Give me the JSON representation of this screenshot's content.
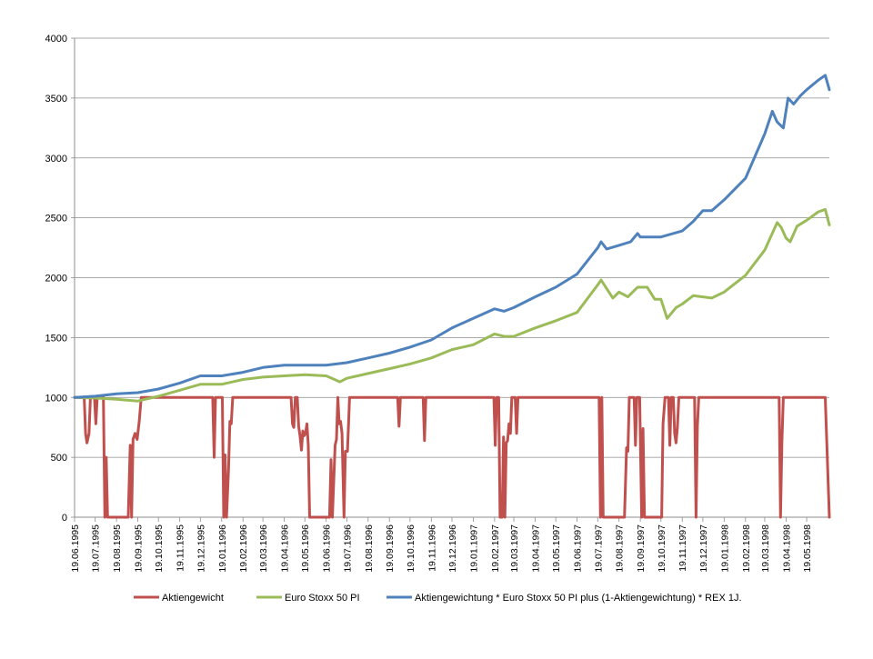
{
  "chart_data": {
    "type": "line",
    "title": "",
    "xlabel": "",
    "ylabel": "",
    "ylim": [
      0,
      4000
    ],
    "yticks": [
      0,
      500,
      1000,
      1500,
      2000,
      2500,
      3000,
      3500,
      4000
    ],
    "xlim": [
      "19.06.1995",
      "21.06.1998"
    ],
    "xticks": [
      "19.06.1995",
      "19.07.1995",
      "19.08.1995",
      "19.09.1995",
      "19.10.1995",
      "19.11.1995",
      "19.12.1995",
      "19.01.1996",
      "19.02.1996",
      "19.03.1996",
      "19.04.1996",
      "19.05.1996",
      "19.06.1996",
      "19.07.1996",
      "19.08.1996",
      "19.09.1996",
      "19.10.1996",
      "19.11.1996",
      "19.12.1996",
      "19.01.1997",
      "19.02.1997",
      "19.03.1997",
      "19.04.1997",
      "19.05.1997",
      "19.06.1997",
      "19.07.1997",
      "19.08.1997",
      "19.09.1997",
      "19.10.1997",
      "19.11.1997",
      "19.12.1997",
      "19.01.1998",
      "19.02.1998",
      "19.03.1998",
      "19.04.1998",
      "19.05.1998"
    ],
    "grid": "horizontal",
    "legend_position": "bottom",
    "series": [
      {
        "name": "Aktiengewicht",
        "color": "#c0504d",
        "points": [
          [
            "19.06.1995",
            1000
          ],
          [
            "03.07.1995",
            1000
          ],
          [
            "05.07.1995",
            700
          ],
          [
            "07.07.1995",
            620
          ],
          [
            "10.07.1995",
            700
          ],
          [
            "12.07.1995",
            1000
          ],
          [
            "18.07.1995",
            1000
          ],
          [
            "20.07.1995",
            780
          ],
          [
            "22.07.1995",
            1000
          ],
          [
            "31.07.1995",
            1000
          ],
          [
            "02.08.1995",
            0
          ],
          [
            "04.08.1995",
            500
          ],
          [
            "06.08.1995",
            0
          ],
          [
            "05.09.1995",
            0
          ],
          [
            "08.09.1995",
            600
          ],
          [
            "10.09.1995",
            0
          ],
          [
            "12.09.1995",
            650
          ],
          [
            "15.09.1995",
            700
          ],
          [
            "18.09.1995",
            650
          ],
          [
            "21.09.1995",
            800
          ],
          [
            "24.09.1995",
            1000
          ],
          [
            "06.01.1996",
            1000
          ],
          [
            "08.01.1996",
            500
          ],
          [
            "10.01.1996",
            1000
          ],
          [
            "20.01.1996",
            1000
          ],
          [
            "22.01.1996",
            0
          ],
          [
            "24.01.1996",
            520
          ],
          [
            "26.01.1996",
            0
          ],
          [
            "29.01.1996",
            400
          ],
          [
            "31.01.1996",
            800
          ],
          [
            "02.02.1996",
            780
          ],
          [
            "04.02.1996",
            1000
          ],
          [
            "29.04.1996",
            1000
          ],
          [
            "01.05.1996",
            780
          ],
          [
            "03.05.1996",
            750
          ],
          [
            "05.05.1996",
            1000
          ],
          [
            "08.05.1996",
            1000
          ],
          [
            "10.05.1996",
            760
          ],
          [
            "12.05.1996",
            680
          ],
          [
            "14.05.1996",
            560
          ],
          [
            "16.05.1996",
            720
          ],
          [
            "18.05.1996",
            680
          ],
          [
            "20.05.1996",
            700
          ],
          [
            "22.05.1996",
            780
          ],
          [
            "24.05.1996",
            600
          ],
          [
            "26.05.1996",
            0
          ],
          [
            "24.06.1996",
            0
          ],
          [
            "26.06.1996",
            480
          ],
          [
            "28.06.1996",
            0
          ],
          [
            "02.07.1996",
            600
          ],
          [
            "04.07.1996",
            650
          ],
          [
            "06.07.1996",
            1000
          ],
          [
            "08.07.1996",
            780
          ],
          [
            "10.07.1996",
            800
          ],
          [
            "12.07.1996",
            700
          ],
          [
            "15.07.1996",
            0
          ],
          [
            "17.07.1996",
            550
          ],
          [
            "20.07.1996",
            550
          ],
          [
            "23.07.1996",
            1000
          ],
          [
            "01.10.1996",
            1000
          ],
          [
            "03.10.1996",
            760
          ],
          [
            "05.10.1996",
            1000
          ],
          [
            "07.11.1996",
            1000
          ],
          [
            "09.11.1996",
            640
          ],
          [
            "11.11.1996",
            1000
          ],
          [
            "18.02.1997",
            1000
          ],
          [
            "20.02.1997",
            600
          ],
          [
            "22.02.1997",
            1000
          ],
          [
            "25.02.1997",
            1000
          ],
          [
            "27.02.1997",
            0
          ],
          [
            "02.03.1997",
            0
          ],
          [
            "04.03.1997",
            670
          ],
          [
            "06.03.1997",
            0
          ],
          [
            "08.03.1997",
            620
          ],
          [
            "10.03.1997",
            640
          ],
          [
            "12.03.1997",
            780
          ],
          [
            "14.03.1997",
            700
          ],
          [
            "16.03.1997",
            1000
          ],
          [
            "21.03.1997",
            1000
          ],
          [
            "23.03.1997",
            700
          ],
          [
            "25.03.1997",
            1000
          ],
          [
            "21.07.1997",
            1000
          ],
          [
            "23.07.1997",
            0
          ],
          [
            "25.07.1997",
            1000
          ],
          [
            "27.07.1997",
            0
          ],
          [
            "27.08.1997",
            0
          ],
          [
            "30.08.1997",
            580
          ],
          [
            "01.09.1997",
            550
          ],
          [
            "03.09.1997",
            1000
          ],
          [
            "10.09.1997",
            1000
          ],
          [
            "12.09.1997",
            600
          ],
          [
            "14.09.1997",
            1000
          ],
          [
            "18.09.1997",
            1000
          ],
          [
            "21.09.1997",
            0
          ],
          [
            "23.09.1997",
            740
          ],
          [
            "25.09.1997",
            0
          ],
          [
            "20.10.1997",
            0
          ],
          [
            "22.10.1997",
            780
          ],
          [
            "25.10.1997",
            1000
          ],
          [
            "30.10.1997",
            1000
          ],
          [
            "01.11.1997",
            600
          ],
          [
            "03.11.1997",
            1000
          ],
          [
            "06.11.1997",
            1000
          ],
          [
            "08.11.1997",
            700
          ],
          [
            "10.11.1997",
            620
          ],
          [
            "12.11.1997",
            750
          ],
          [
            "14.11.1997",
            1000
          ],
          [
            "07.12.1997",
            1000
          ],
          [
            "09.12.1997",
            0
          ],
          [
            "11.12.1997",
            760
          ],
          [
            "13.12.1997",
            1000
          ],
          [
            "09.04.1998",
            1000
          ],
          [
            "11.04.1998",
            0
          ],
          [
            "13.04.1998",
            620
          ],
          [
            "15.04.1998",
            1000
          ],
          [
            "15.06.1998",
            1000
          ],
          [
            "21.06.1998",
            0
          ]
        ]
      },
      {
        "name": "Euro Stoxx 50 PI",
        "color": "#9bbb59",
        "points": [
          [
            "19.06.1995",
            1000
          ],
          [
            "19.07.1995",
            995
          ],
          [
            "19.08.1995",
            985
          ],
          [
            "19.09.1995",
            970
          ],
          [
            "19.10.1995",
            1010
          ],
          [
            "19.11.1995",
            1060
          ],
          [
            "19.12.1995",
            1110
          ],
          [
            "19.01.1996",
            1110
          ],
          [
            "19.02.1996",
            1150
          ],
          [
            "19.03.1996",
            1170
          ],
          [
            "19.04.1996",
            1180
          ],
          [
            "19.05.1996",
            1190
          ],
          [
            "19.06.1996",
            1180
          ],
          [
            "09.07.1996",
            1130
          ],
          [
            "19.07.1996",
            1160
          ],
          [
            "19.08.1996",
            1200
          ],
          [
            "19.09.1996",
            1240
          ],
          [
            "19.10.1996",
            1280
          ],
          [
            "19.11.1996",
            1330
          ],
          [
            "19.12.1996",
            1400
          ],
          [
            "19.01.1997",
            1440
          ],
          [
            "19.02.1997",
            1530
          ],
          [
            "05.03.1997",
            1510
          ],
          [
            "19.03.1997",
            1510
          ],
          [
            "19.04.1997",
            1580
          ],
          [
            "19.05.1997",
            1640
          ],
          [
            "19.06.1997",
            1710
          ],
          [
            "19.07.1997",
            1940
          ],
          [
            "24.07.1997",
            1980
          ],
          [
            "10.08.1997",
            1830
          ],
          [
            "19.08.1997",
            1880
          ],
          [
            "01.09.1997",
            1840
          ],
          [
            "15.09.1997",
            1920
          ],
          [
            "29.09.1997",
            1920
          ],
          [
            "10.10.1997",
            1820
          ],
          [
            "19.10.1997",
            1820
          ],
          [
            "28.10.1997",
            1660
          ],
          [
            "10.11.1997",
            1750
          ],
          [
            "19.11.1997",
            1780
          ],
          [
            "05.12.1997",
            1850
          ],
          [
            "19.12.1997",
            1840
          ],
          [
            "01.01.1998",
            1830
          ],
          [
            "19.01.1998",
            1880
          ],
          [
            "19.02.1998",
            2020
          ],
          [
            "19.03.1998",
            2230
          ],
          [
            "06.04.1998",
            2460
          ],
          [
            "12.04.1998",
            2420
          ],
          [
            "19.04.1998",
            2330
          ],
          [
            "25.04.1998",
            2300
          ],
          [
            "05.05.1998",
            2430
          ],
          [
            "19.05.1998",
            2480
          ],
          [
            "05.06.1998",
            2550
          ],
          [
            "15.06.1998",
            2570
          ],
          [
            "21.06.1998",
            2440
          ]
        ]
      },
      {
        "name": "Aktiengewichtung * Euro Stoxx 50 PI plus (1-Aktiengewichtung) * REX 1J.",
        "color": "#4f81bd",
        "points": [
          [
            "19.06.1995",
            1000
          ],
          [
            "19.07.1995",
            1010
          ],
          [
            "19.08.1995",
            1030
          ],
          [
            "19.09.1995",
            1040
          ],
          [
            "19.10.1995",
            1070
          ],
          [
            "19.11.1995",
            1120
          ],
          [
            "19.12.1995",
            1180
          ],
          [
            "19.01.1996",
            1180
          ],
          [
            "19.02.1996",
            1210
          ],
          [
            "19.03.1996",
            1250
          ],
          [
            "19.04.1996",
            1270
          ],
          [
            "19.05.1996",
            1270
          ],
          [
            "19.06.1996",
            1270
          ],
          [
            "19.07.1996",
            1290
          ],
          [
            "19.08.1996",
            1330
          ],
          [
            "19.09.1996",
            1370
          ],
          [
            "19.10.1996",
            1420
          ],
          [
            "19.11.1996",
            1480
          ],
          [
            "19.12.1996",
            1580
          ],
          [
            "19.01.1997",
            1660
          ],
          [
            "19.02.1997",
            1740
          ],
          [
            "05.03.1997",
            1720
          ],
          [
            "19.03.1997",
            1750
          ],
          [
            "19.04.1997",
            1840
          ],
          [
            "19.05.1997",
            1920
          ],
          [
            "19.06.1997",
            2030
          ],
          [
            "19.07.1997",
            2250
          ],
          [
            "24.07.1997",
            2300
          ],
          [
            "01.08.1997",
            2240
          ],
          [
            "19.08.1997",
            2270
          ],
          [
            "05.09.1997",
            2300
          ],
          [
            "15.09.1997",
            2370
          ],
          [
            "19.09.1997",
            2340
          ],
          [
            "19.10.1997",
            2340
          ],
          [
            "19.11.1997",
            2390
          ],
          [
            "05.12.1997",
            2470
          ],
          [
            "19.12.1997",
            2560
          ],
          [
            "01.01.1998",
            2560
          ],
          [
            "19.01.1998",
            2650
          ],
          [
            "19.02.1998",
            2830
          ],
          [
            "19.03.1998",
            3200
          ],
          [
            "30.03.1998",
            3390
          ],
          [
            "06.04.1998",
            3300
          ],
          [
            "15.04.1998",
            3250
          ],
          [
            "22.04.1998",
            3500
          ],
          [
            "30.04.1998",
            3450
          ],
          [
            "10.05.1998",
            3520
          ],
          [
            "19.05.1998",
            3570
          ],
          [
            "05.06.1998",
            3650
          ],
          [
            "15.06.1998",
            3690
          ],
          [
            "21.06.1998",
            3570
          ]
        ]
      }
    ]
  }
}
